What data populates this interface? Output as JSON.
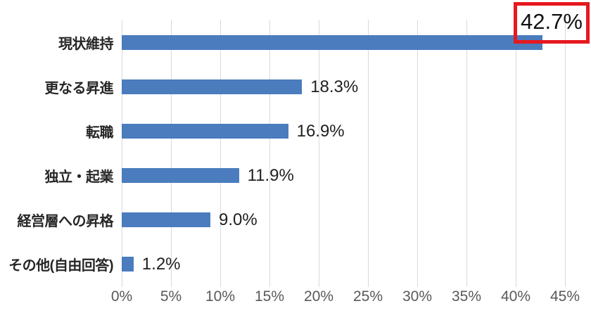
{
  "chart_data": {
    "type": "bar",
    "orientation": "horizontal",
    "title": "",
    "xlabel": "",
    "ylabel": "",
    "categories": [
      "現状維持",
      "更なる昇進",
      "転職",
      "独立・起業",
      "経営層への昇格",
      "その他(自由回答)"
    ],
    "values": [
      42.7,
      18.3,
      16.9,
      11.9,
      9.0,
      1.2
    ],
    "value_labels": [
      "42.7%",
      "18.3%",
      "16.9%",
      "11.9%",
      "9.0%",
      "1.2%"
    ],
    "x_tick_values": [
      0,
      5,
      10,
      15,
      20,
      25,
      30,
      35,
      40,
      45
    ],
    "x_tick_labels": [
      "0%",
      "5%",
      "10%",
      "15%",
      "20%",
      "25%",
      "30%",
      "35%",
      "40%",
      "45%"
    ],
    "xlim": [
      0,
      45
    ],
    "grid": true,
    "legend": false,
    "colors": {
      "bar": "#4a7cbe",
      "gridline": "#d9d9d9",
      "tick_text": "#595959",
      "label_text": "#262626",
      "highlight_border": "#e5191f"
    },
    "annotation": {
      "type": "highlight-box",
      "text": "42.7%",
      "target_category": "現状維持",
      "border_color": "#e5191f"
    }
  }
}
